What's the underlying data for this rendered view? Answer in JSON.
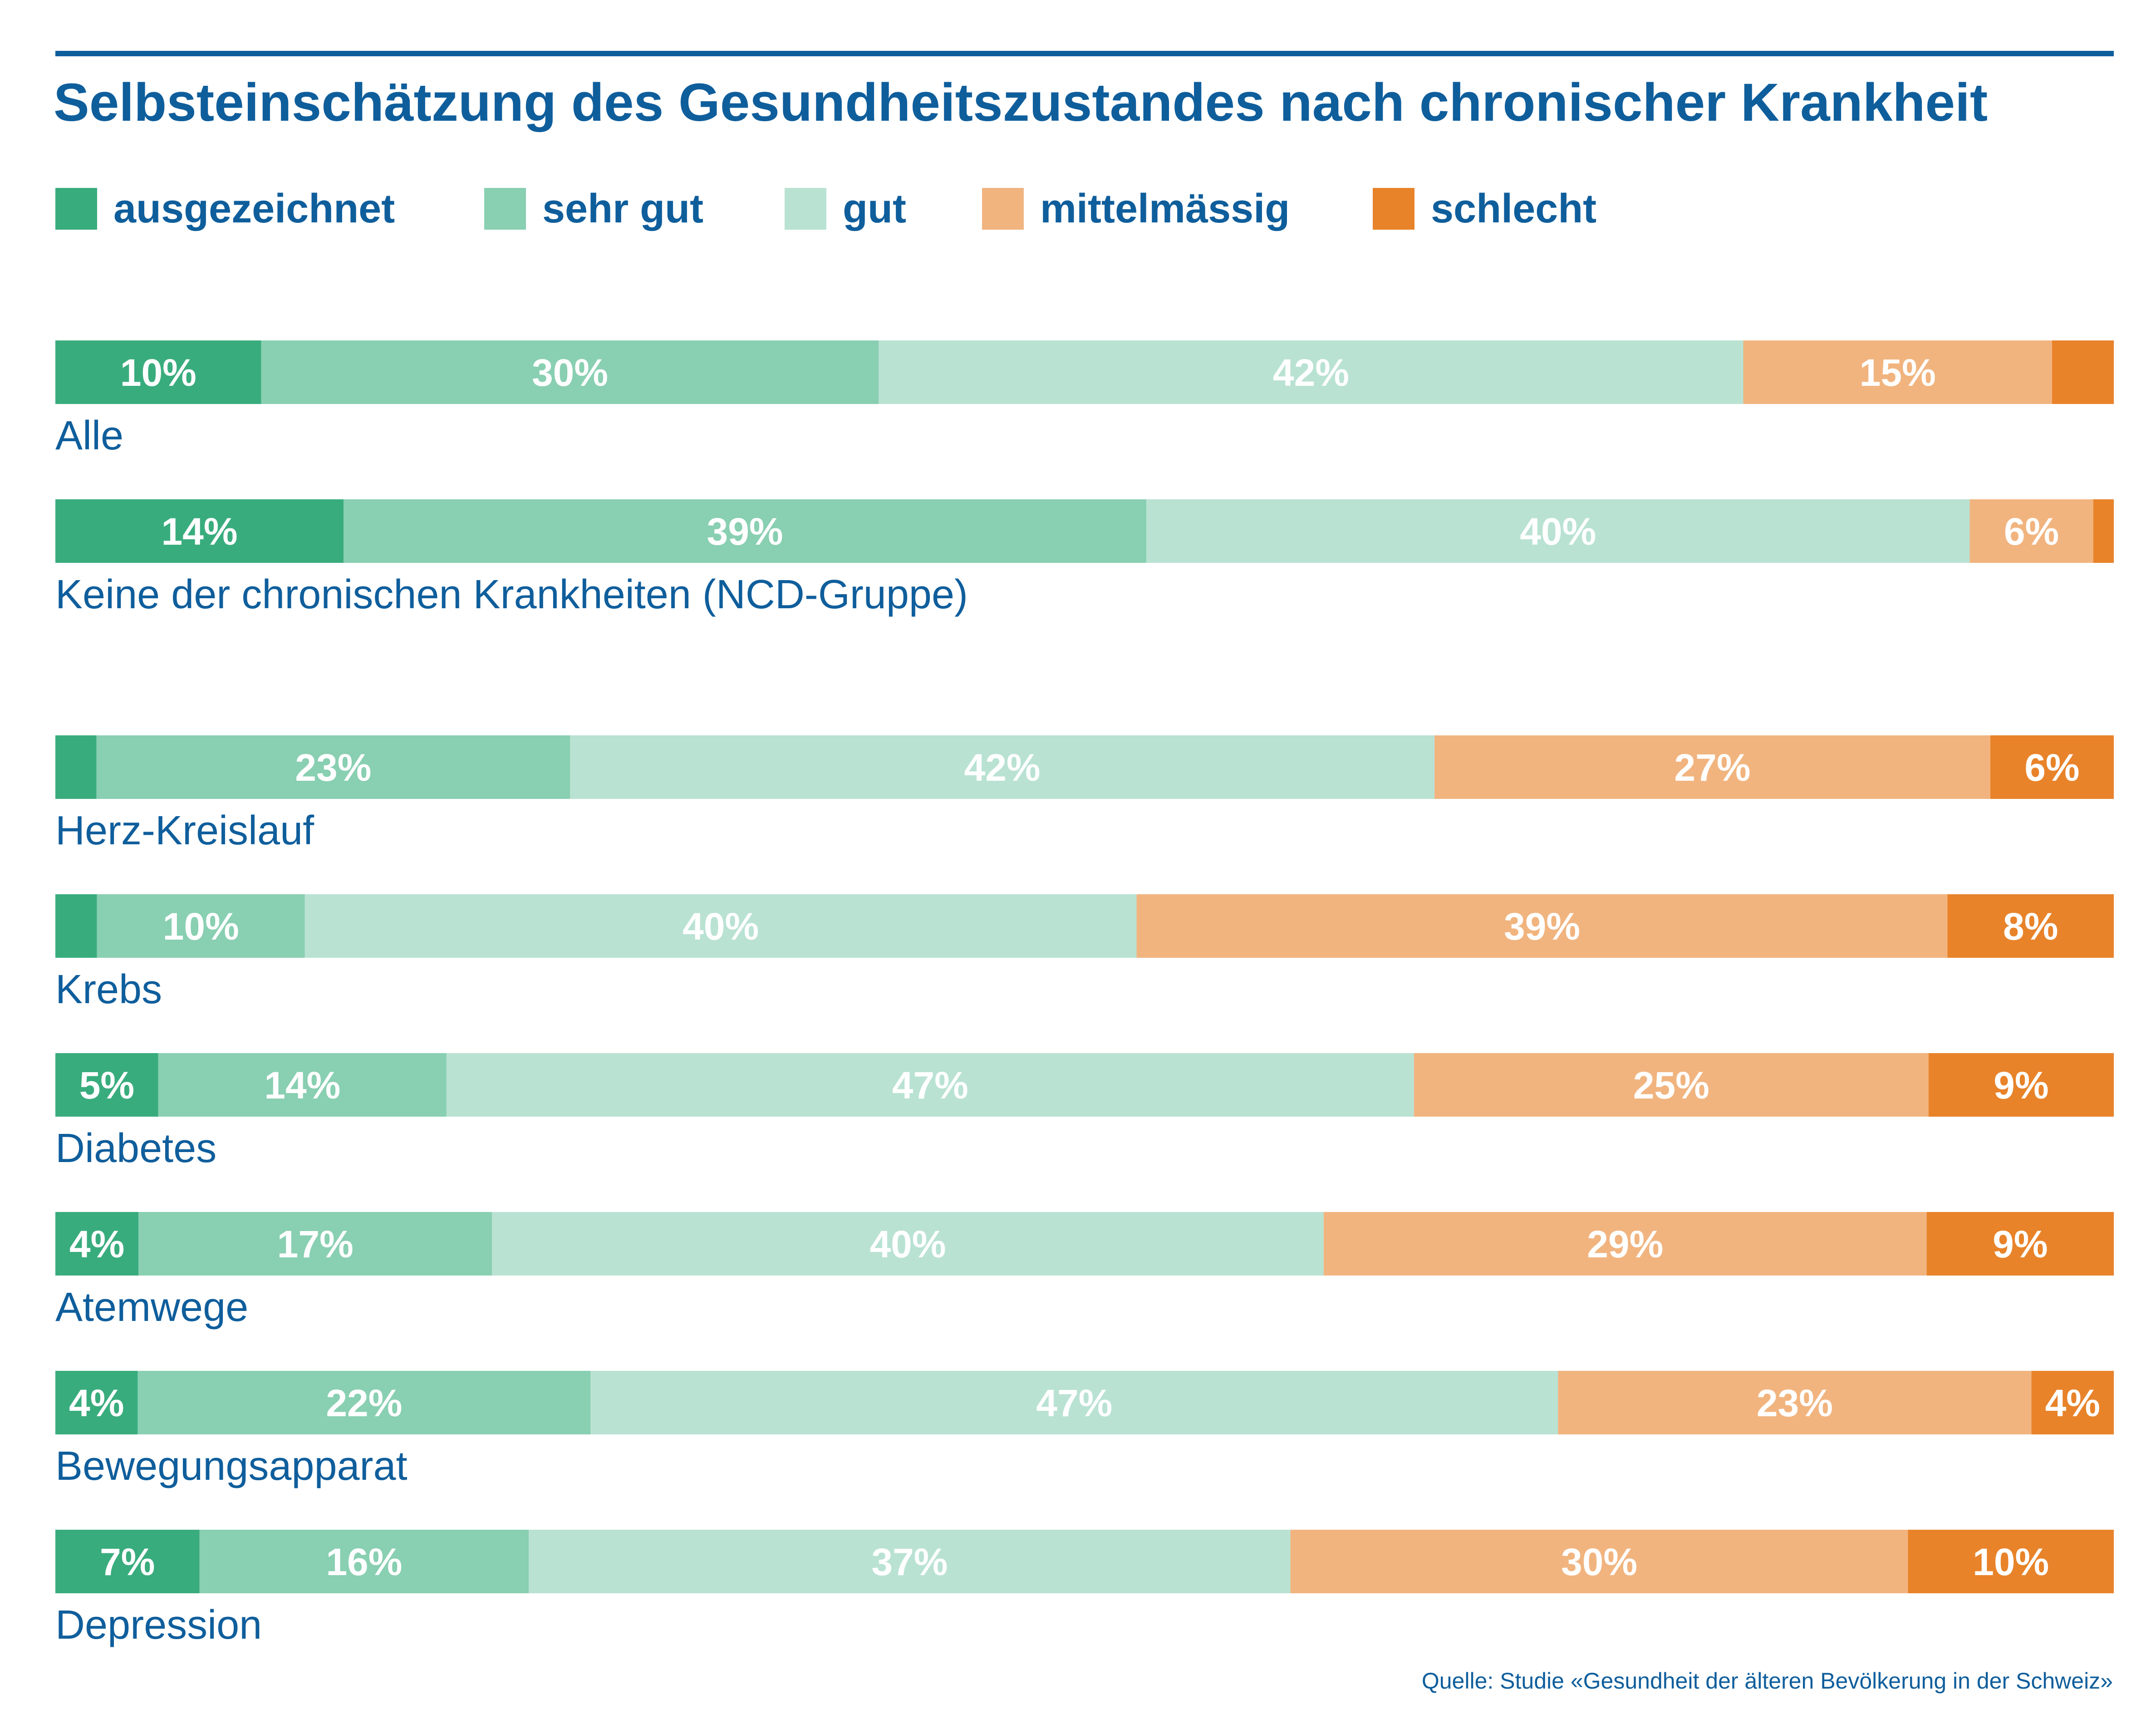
{
  "chart_data": {
    "type": "bar",
    "orientation": "horizontal",
    "stacked": true,
    "normalized": "100%",
    "title": "Selbsteinschätzung des Gesundheitszustandes nach chronischer Krankheit",
    "categories": [
      "Alle",
      "Keine der chronischen Krankheiten (NCD-Gruppe)",
      "Herz-Kreislauf",
      "Krebs",
      "Diabetes",
      "Atemwege",
      "Bewegungsapparat",
      "Depression"
    ],
    "series": [
      {
        "name": "ausgezeichnet",
        "color": "#39ac7d",
        "values": [
          10,
          14,
          2,
          2,
          5,
          4,
          4,
          7
        ],
        "labels": [
          "10%",
          "14%",
          "",
          "",
          "5%",
          "4%",
          "4%",
          "7%"
        ]
      },
      {
        "name": "sehr gut",
        "color": "#89cfb2",
        "values": [
          30,
          39,
          23,
          10,
          14,
          17,
          22,
          16
        ],
        "labels": [
          "30%",
          "39%",
          "23%",
          "10%",
          "14%",
          "17%",
          "22%",
          "16%"
        ]
      },
      {
        "name": "gut",
        "color": "#b9e2d3",
        "values": [
          42,
          40,
          42,
          40,
          47,
          40,
          47,
          37
        ],
        "labels": [
          "42%",
          "40%",
          "42%",
          "40%",
          "47%",
          "40%",
          "47%",
          "37%"
        ]
      },
      {
        "name": "mittelmässig",
        "color": "#f1b47f",
        "values": [
          15,
          6,
          27,
          39,
          25,
          29,
          23,
          30
        ],
        "labels": [
          "15%",
          "6%",
          "27%",
          "39%",
          "25%",
          "29%",
          "23%",
          "30%"
        ]
      },
      {
        "name": "schlecht",
        "color": "#e8832a",
        "values": [
          3,
          1,
          6,
          8,
          9,
          9,
          4,
          10
        ],
        "labels": [
          "",
          "",
          "6%",
          "8%",
          "9%",
          "9%",
          "4%",
          "10%"
        ]
      }
    ],
    "xlim": [
      0,
      100
    ],
    "legend": "top",
    "grid": false
  },
  "source": "Quelle: Studie «Gesundheit der älteren Bevölkerung in der Schweiz»"
}
